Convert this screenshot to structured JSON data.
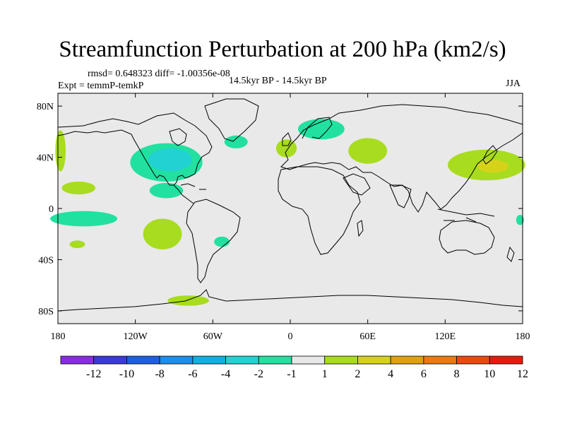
{
  "chart_data": {
    "type": "heatmap",
    "title": "Streamfunction Perturbation at 200 hPa (km2/s)",
    "stats_line": "rmsd= 0.648323 diff= -1.00356e-08",
    "experiment": "Expt = temmP-temkP",
    "period": "14.5kyr BP - 14.5kyr BP",
    "season": "JJA",
    "xlabel": "",
    "ylabel": "",
    "xlim": [
      -180,
      180
    ],
    "ylim": [
      -90,
      90
    ],
    "x_ticks": [
      {
        "value": -180,
        "label": "180"
      },
      {
        "value": -120,
        "label": "120W"
      },
      {
        "value": -60,
        "label": "60W"
      },
      {
        "value": 0,
        "label": "0"
      },
      {
        "value": 60,
        "label": "60E"
      },
      {
        "value": 120,
        "label": "120E"
      },
      {
        "value": 180,
        "label": "180"
      }
    ],
    "y_ticks": [
      {
        "value": 80,
        "label": "80N"
      },
      {
        "value": 40,
        "label": "40N"
      },
      {
        "value": 0,
        "label": "0"
      },
      {
        "value": -40,
        "label": "40S"
      },
      {
        "value": -80,
        "label": "80S"
      }
    ],
    "colorbar": {
      "labels": [
        "-12",
        "-10",
        "-8",
        "-6",
        "-4",
        "-2",
        "-1",
        "1",
        "2",
        "4",
        "6",
        "8",
        "10",
        "12"
      ],
      "colors": [
        "#8a2be2",
        "#3a3ad8",
        "#1e5fe0",
        "#1e8ee8",
        "#10b0e0",
        "#22d2d2",
        "#22e0a0",
        "#e8e8e8",
        "#a8dc1e",
        "#d6d21a",
        "#e0a010",
        "#e87a10",
        "#ea4a10",
        "#e81a10"
      ]
    },
    "anomaly_regions": [
      {
        "name": "N America upper low",
        "lon": -96,
        "lat": 36,
        "rlon": 28,
        "rlat": 15,
        "level": "-2 to -1",
        "color": "#22e0a0"
      },
      {
        "name": "N America upper low core",
        "lon": -93,
        "lat": 38,
        "rlon": 17,
        "rlat": 9,
        "level": "-4 to -2",
        "color": "#22d2d2"
      },
      {
        "name": "Mexico trough",
        "lon": -96,
        "lat": 14,
        "rlon": 13,
        "rlat": 6,
        "level": "-2 to -1",
        "color": "#22e0a0"
      },
      {
        "name": "North Atlantic",
        "lon": -42,
        "lat": 52,
        "rlon": 9,
        "rlat": 5,
        "level": "-2 to -1",
        "color": "#22e0a0"
      },
      {
        "name": "Scandinavia",
        "lon": 24,
        "lat": 62,
        "rlon": 18,
        "rlat": 8,
        "level": "-2 to -1",
        "color": "#22e0a0"
      },
      {
        "name": "Western Europe",
        "lon": -3,
        "lat": 47,
        "rlon": 8,
        "rlat": 7,
        "level": "1 to 2",
        "color": "#a8dc1e"
      },
      {
        "name": "Central Asia",
        "lon": 60,
        "lat": 45,
        "rlon": 15,
        "rlat": 10,
        "level": "1 to 2",
        "color": "#a8dc1e"
      },
      {
        "name": "NW Pacific",
        "lon": 152,
        "lat": 34,
        "rlon": 30,
        "rlat": 12,
        "level": "1 to 2",
        "color": "#a8dc1e"
      },
      {
        "name": "NW Pacific core",
        "lon": 157,
        "lat": 33,
        "rlon": 12,
        "rlat": 5,
        "level": "2 to 4",
        "color": "#d6d21a"
      },
      {
        "name": "Eastern Pacific 40N",
        "lon": -178,
        "lat": 45,
        "rlon": 4,
        "rlat": 16,
        "level": "1 to 2",
        "color": "#a8dc1e"
      },
      {
        "name": "Subtropical N Pacific",
        "lon": -164,
        "lat": 16,
        "rlon": 13,
        "rlat": 5,
        "level": "1 to 2",
        "color": "#a8dc1e"
      },
      {
        "name": "Tropical S Pacific",
        "lon": -160,
        "lat": -8,
        "rlon": 26,
        "rlat": 6,
        "level": "-2 to -1",
        "color": "#22e0a0"
      },
      {
        "name": "S Pacific west edge",
        "lon": 178,
        "lat": -9,
        "rlon": 3,
        "rlat": 4,
        "level": "-2 to -1",
        "color": "#22e0a0"
      },
      {
        "name": "Subtropical S Pacific",
        "lon": -165,
        "lat": -28,
        "rlon": 6,
        "rlat": 3,
        "level": "1 to 2",
        "color": "#a8dc1e"
      },
      {
        "name": "Eastern S Pacific",
        "lon": -99,
        "lat": -20,
        "rlon": 15,
        "rlat": 12,
        "level": "1 to 2",
        "color": "#a8dc1e"
      },
      {
        "name": "South Atlantic",
        "lon": -53,
        "lat": -26,
        "rlon": 6,
        "rlat": 4,
        "level": "-2 to -1",
        "color": "#22e0a0"
      },
      {
        "name": "Antarctic Peninsula",
        "lon": -79,
        "lat": -72,
        "rlon": 16,
        "rlat": 4,
        "level": "1 to 2",
        "color": "#a8dc1e"
      }
    ]
  }
}
